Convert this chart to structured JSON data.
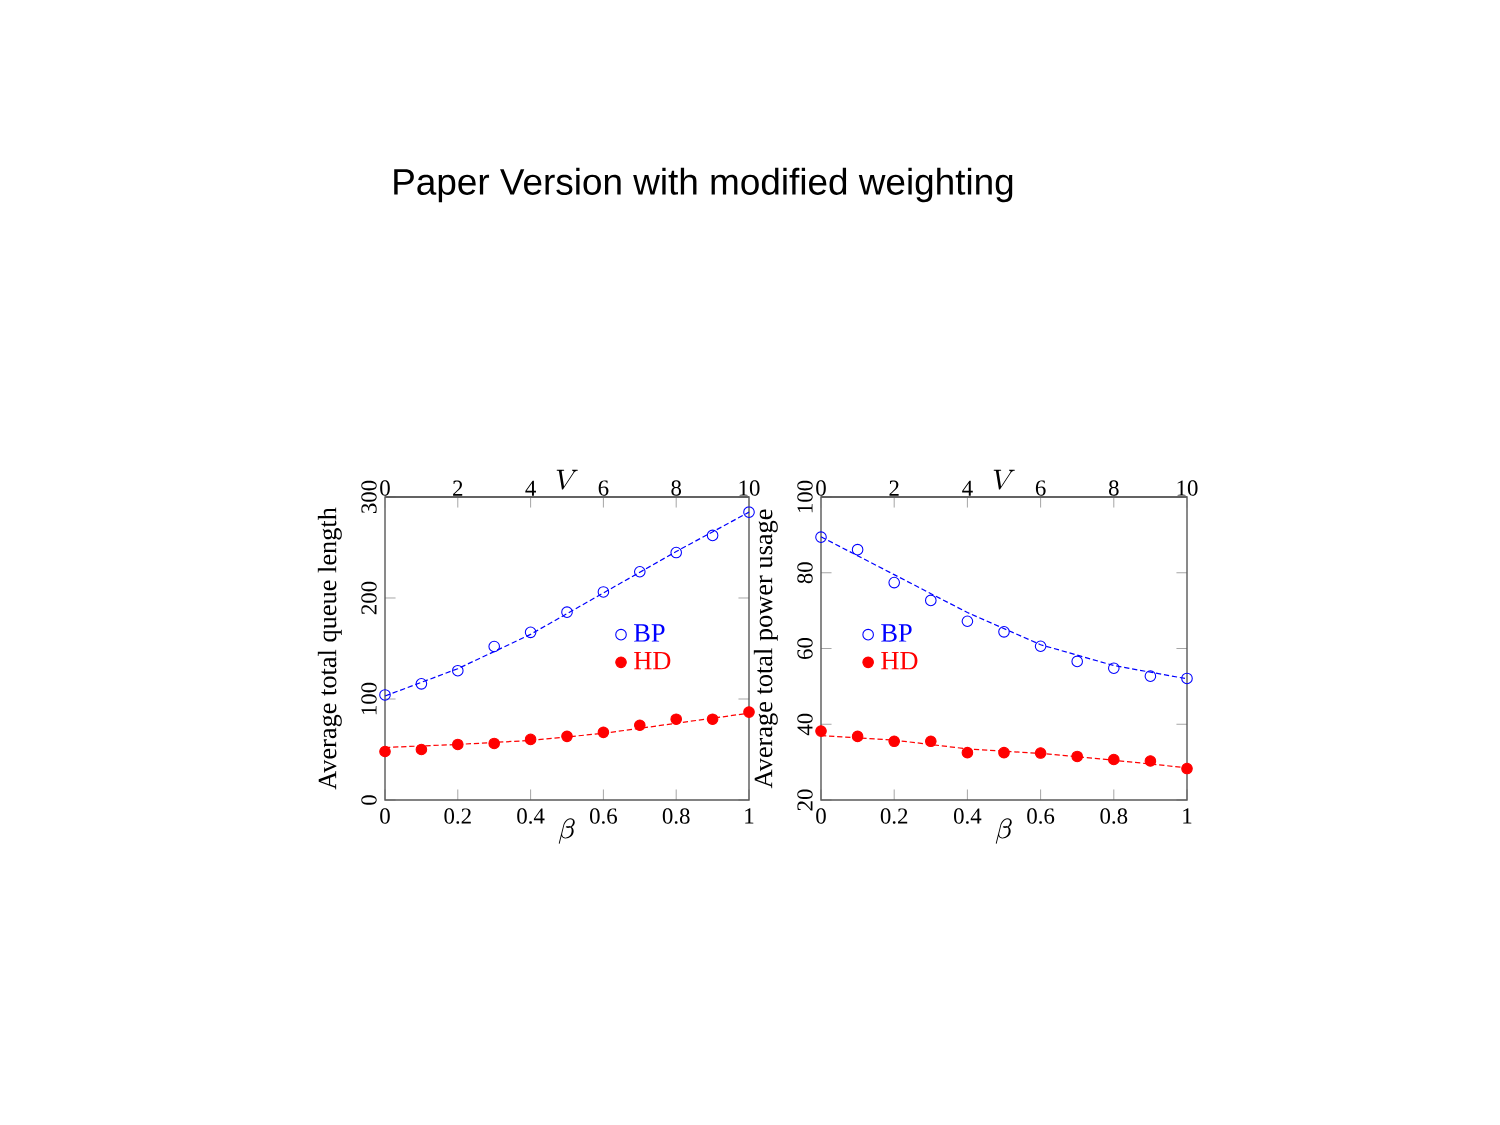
{
  "chart_data": [
    {
      "type": "scatter",
      "title": "Paper Version with modified weighting",
      "xlabel": "\\beta",
      "x2label": "V",
      "ylabel": "Average total queue length",
      "xlim": [
        0,
        1
      ],
      "xticks": [
        0,
        0.2,
        0.4,
        0.6,
        0.8,
        1
      ],
      "x2lim": [
        0,
        10
      ],
      "x2ticks": [
        0,
        2,
        4,
        6,
        8,
        10
      ],
      "ylim": [
        0,
        300
      ],
      "yticks": [
        0,
        100,
        200,
        300
      ],
      "legend": "right",
      "grid": false,
      "series": [
        {
          "name": "BP",
          "marker": "circle",
          "color": "#0000ff",
          "x": [
            0,
            0.1,
            0.2,
            0.3,
            0.4,
            0.5,
            0.6,
            0.7,
            0.8,
            0.9,
            1
          ],
          "values": [
            104,
            115,
            128,
            152,
            166,
            186,
            206,
            226,
            245,
            262,
            285
          ]
        },
        {
          "name": "HD",
          "marker": "dot",
          "color": "#ff0000",
          "x": [
            0,
            0.1,
            0.2,
            0.3,
            0.4,
            0.5,
            0.6,
            0.7,
            0.8,
            0.9,
            1
          ],
          "values": [
            48,
            50,
            55,
            56,
            60,
            63,
            67,
            74,
            80,
            80,
            87
          ]
        },
        {
          "type": "line",
          "line_style": "dashed",
          "marker": "none",
          "color": "#0000ff",
          "x": [
            0,
            0.2,
            0.4,
            0.6,
            0.8,
            1
          ],
          "values": [
            103,
            130,
            164,
            205,
            246,
            285
          ]
        },
        {
          "type": "line",
          "line_style": "dashed",
          "marker": "none",
          "color": "#ff0000",
          "x": [
            0,
            0.2,
            0.4,
            0.6,
            0.8,
            1
          ],
          "values": [
            52,
            55,
            59,
            66,
            76,
            86
          ]
        }
      ]
    },
    {
      "type": "scatter",
      "xlabel": "\\beta",
      "x2label": "V",
      "ylabel": "Average total power usage",
      "xlim": [
        0,
        1
      ],
      "xticks": [
        0,
        0.2,
        0.4,
        0.6,
        0.8,
        1
      ],
      "x2lim": [
        0,
        10
      ],
      "x2ticks": [
        0,
        2,
        4,
        6,
        8,
        10
      ],
      "ylim": [
        20,
        100
      ],
      "yticks": [
        20,
        40,
        60,
        80,
        100
      ],
      "legend": "left",
      "grid": false,
      "series": [
        {
          "name": "BP",
          "marker": "circle",
          "color": "#0000ff",
          "x": [
            0,
            0.1,
            0.2,
            0.3,
            0.4,
            0.5,
            0.6,
            0.7,
            0.8,
            0.9,
            1
          ],
          "values": [
            89.4,
            86.1,
            77.4,
            72.7,
            67.2,
            64.4,
            60.6,
            56.6,
            54.8,
            52.7,
            52.1
          ]
        },
        {
          "name": "HD",
          "marker": "dot",
          "color": "#ff0000",
          "x": [
            0,
            0.1,
            0.2,
            0.3,
            0.4,
            0.5,
            0.6,
            0.7,
            0.8,
            0.9,
            1
          ],
          "values": [
            38.2,
            36.8,
            35.5,
            35.5,
            32.5,
            32.5,
            32.4,
            31.5,
            30.7,
            30.3,
            28.3
          ]
        },
        {
          "type": "line",
          "line_style": "dashed",
          "marker": "none",
          "color": "#0000ff",
          "x": [
            0,
            0.2,
            0.4,
            0.6,
            0.8,
            1
          ],
          "values": [
            89.5,
            79.5,
            69.5,
            61,
            55.5,
            52
          ]
        },
        {
          "type": "line",
          "line_style": "dashed",
          "marker": "none",
          "color": "#ff0000",
          "x": [
            0,
            0.2,
            0.4,
            0.6,
            0.8,
            1
          ],
          "values": [
            37,
            35.8,
            33.5,
            32.3,
            30.5,
            28.5
          ]
        }
      ]
    }
  ]
}
